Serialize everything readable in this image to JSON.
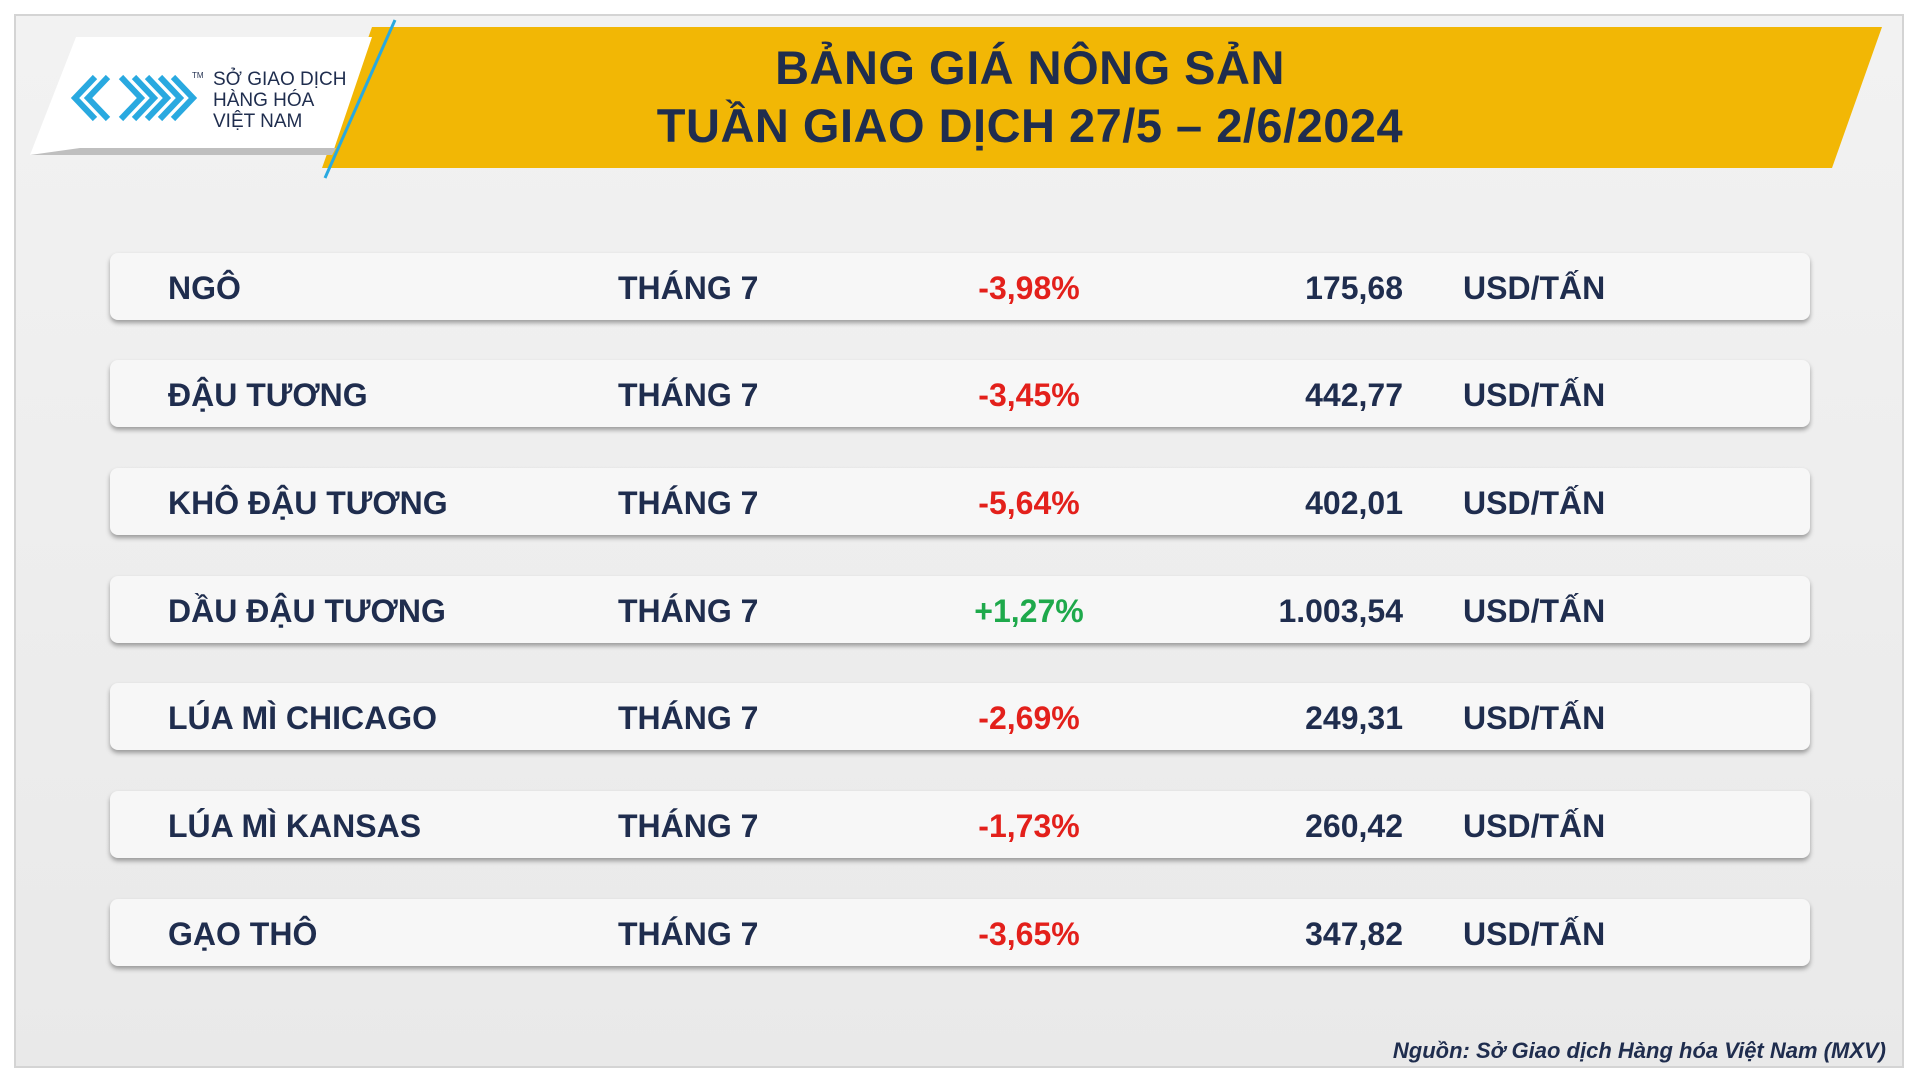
{
  "header": {
    "logo": {
      "mark": "TM",
      "lines": [
        "SỞ GIAO DỊCH",
        "HÀNG HÓA",
        "VIỆT NAM"
      ]
    },
    "title": [
      "BẢNG GIÁ NÔNG SẢN",
      "TUẦN GIAO DỊCH 27/5 – 2/6/2024"
    ]
  },
  "table": {
    "rows": [
      [
        "NGÔ",
        "THÁNG 7",
        "-3,98%",
        "175,68",
        "USD/TẤN"
      ],
      [
        "ĐẬU TƯƠNG",
        "THÁNG 7",
        "-3,45%",
        "442,77",
        "USD/TẤN"
      ],
      [
        "KHÔ ĐẬU TƯƠNG",
        "THÁNG 7",
        "-5,64%",
        "402,01",
        "USD/TẤN"
      ],
      [
        "DẦU ĐẬU TƯƠNG",
        "THÁNG 7",
        "+1,27%",
        "1.003,54",
        "USD/TẤN"
      ],
      [
        "LÚA MÌ CHICAGO",
        "THÁNG 7",
        "-2,69%",
        "249,31",
        "USD/TẤN"
      ],
      [
        "LÚA MÌ KANSAS",
        "THÁNG 7",
        "-1,73%",
        "260,42",
        "USD/TẤN"
      ],
      [
        "GẠO THÔ",
        "THÁNG 7",
        "-3,65%",
        "347,82",
        "USD/TẤN"
      ]
    ]
  },
  "footer": {
    "source": "Nguồn: Sở Giao dịch Hàng hóa Việt Nam (MXV)"
  }
}
